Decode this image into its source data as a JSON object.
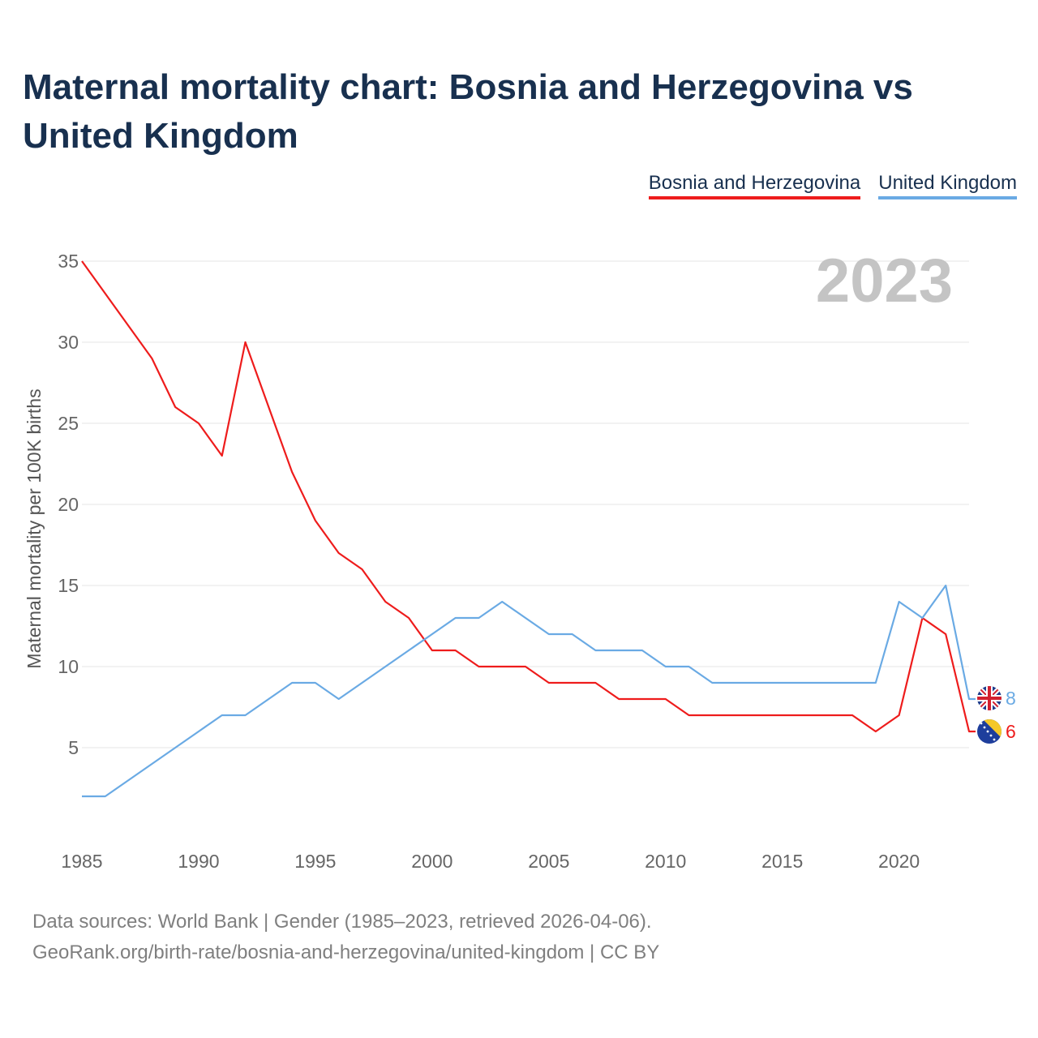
{
  "title": "Maternal mortality chart: Bosnia and Herzegovina vs United Kingdom",
  "legend": {
    "bih": "Bosnia and Herzegovina",
    "uk": "United Kingdom"
  },
  "year_label": "2023",
  "footer": {
    "line1": "Data sources: World Bank | Gender (1985–2023, retrieved 2026-04-06).",
    "line2": "GeoRank.org/birth-rate/bosnia-and-herzegovina/united-kingdom | CC BY"
  },
  "colors": {
    "bih": "#ee1c1c",
    "uk": "#6aaae4"
  },
  "chart_data": {
    "type": "line",
    "title": "Maternal mortality chart: Bosnia and Herzegovina vs United Kingdom",
    "ylabel": "Maternal mortality per 100K births",
    "xlabel": "",
    "xlim": [
      1985,
      2023
    ],
    "ylim": [
      0,
      35
    ],
    "yticks": [
      5,
      10,
      15,
      20,
      25,
      30,
      35
    ],
    "xticks": [
      1985,
      1990,
      1995,
      2000,
      2005,
      2010,
      2015,
      2020
    ],
    "x": [
      1985,
      1986,
      1987,
      1988,
      1989,
      1990,
      1991,
      1992,
      1993,
      1994,
      1995,
      1996,
      1997,
      1998,
      1999,
      2000,
      2001,
      2002,
      2003,
      2004,
      2005,
      2006,
      2007,
      2008,
      2009,
      2010,
      2011,
      2012,
      2013,
      2014,
      2015,
      2016,
      2017,
      2018,
      2019,
      2020,
      2021,
      2022,
      2023
    ],
    "series": [
      {
        "name": "Bosnia and Herzegovina",
        "key": "bih",
        "values": [
          35,
          33,
          31,
          29,
          26,
          25,
          23,
          30,
          26,
          22,
          19,
          17,
          16,
          14,
          13,
          11,
          11,
          10,
          10,
          10,
          9,
          9,
          9,
          8,
          8,
          8,
          7,
          7,
          7,
          7,
          7,
          7,
          7,
          7,
          6,
          7,
          13,
          12,
          6
        ],
        "end_label": "6"
      },
      {
        "name": "United Kingdom",
        "key": "uk",
        "values": [
          2,
          2,
          3,
          4,
          5,
          6,
          7,
          7,
          8,
          9,
          9,
          8,
          9,
          10,
          11,
          12,
          13,
          13,
          14,
          13,
          12,
          12,
          11,
          11,
          11,
          10,
          10,
          9,
          9,
          9,
          9,
          9,
          9,
          9,
          9,
          14,
          13,
          15,
          8
        ],
        "end_label": "8"
      }
    ]
  }
}
